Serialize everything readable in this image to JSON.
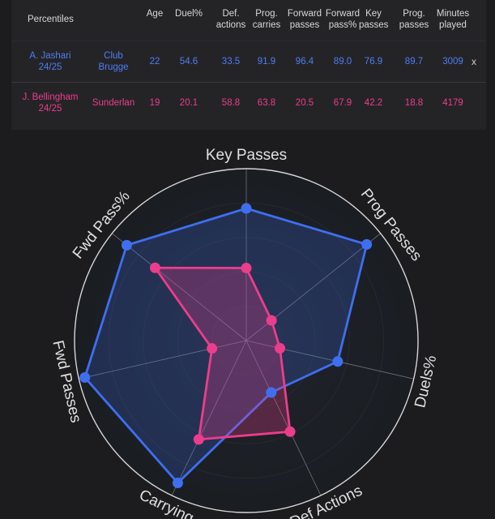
{
  "table": {
    "headers": [
      "Percentiles",
      "",
      "Age",
      "Duel%",
      "Def.\nactions",
      "Prog.\ncarries",
      "Forward\npasses",
      "Forward\npass%",
      "Key\npasses",
      "Prog.\npasses",
      "Minutes\nplayed"
    ],
    "rows": [
      {
        "player": "A. Jashari\n24/25",
        "club": "Club\nBrugge",
        "values": [
          "22",
          "54.6",
          "33.5",
          "91.9",
          "96.4",
          "89.0",
          "76.9",
          "89.7",
          "3009"
        ],
        "remove": "x",
        "color": "#4f7df2"
      },
      {
        "player": "J. Bellingham\n24/25",
        "club": "Sunderlan",
        "values": [
          "19",
          "20.1",
          "58.8",
          "63.8",
          "20.5",
          "67.9",
          "42.2",
          "18.8",
          "4179"
        ],
        "remove": "",
        "color": "#ec3d8b"
      }
    ]
  },
  "chart_data": {
    "type": "radar",
    "axes": [
      "Key Passes",
      "Prog Passes",
      "Duels%",
      "Def Actions",
      "Carrying",
      "Fwd Passes",
      "Fwd Pass%"
    ],
    "range": [
      0,
      100
    ],
    "series": [
      {
        "name": "A. Jashari 24/25",
        "color": "#3f6ff0",
        "values": [
          76.9,
          89.7,
          54.6,
          33.5,
          91.9,
          96.4,
          89.0
        ]
      },
      {
        "name": "J. Bellingham 24/25",
        "color": "#ec3d8b",
        "values": [
          42.2,
          18.8,
          20.1,
          58.8,
          63.8,
          20.5,
          67.9
        ]
      }
    ],
    "grid": true
  }
}
